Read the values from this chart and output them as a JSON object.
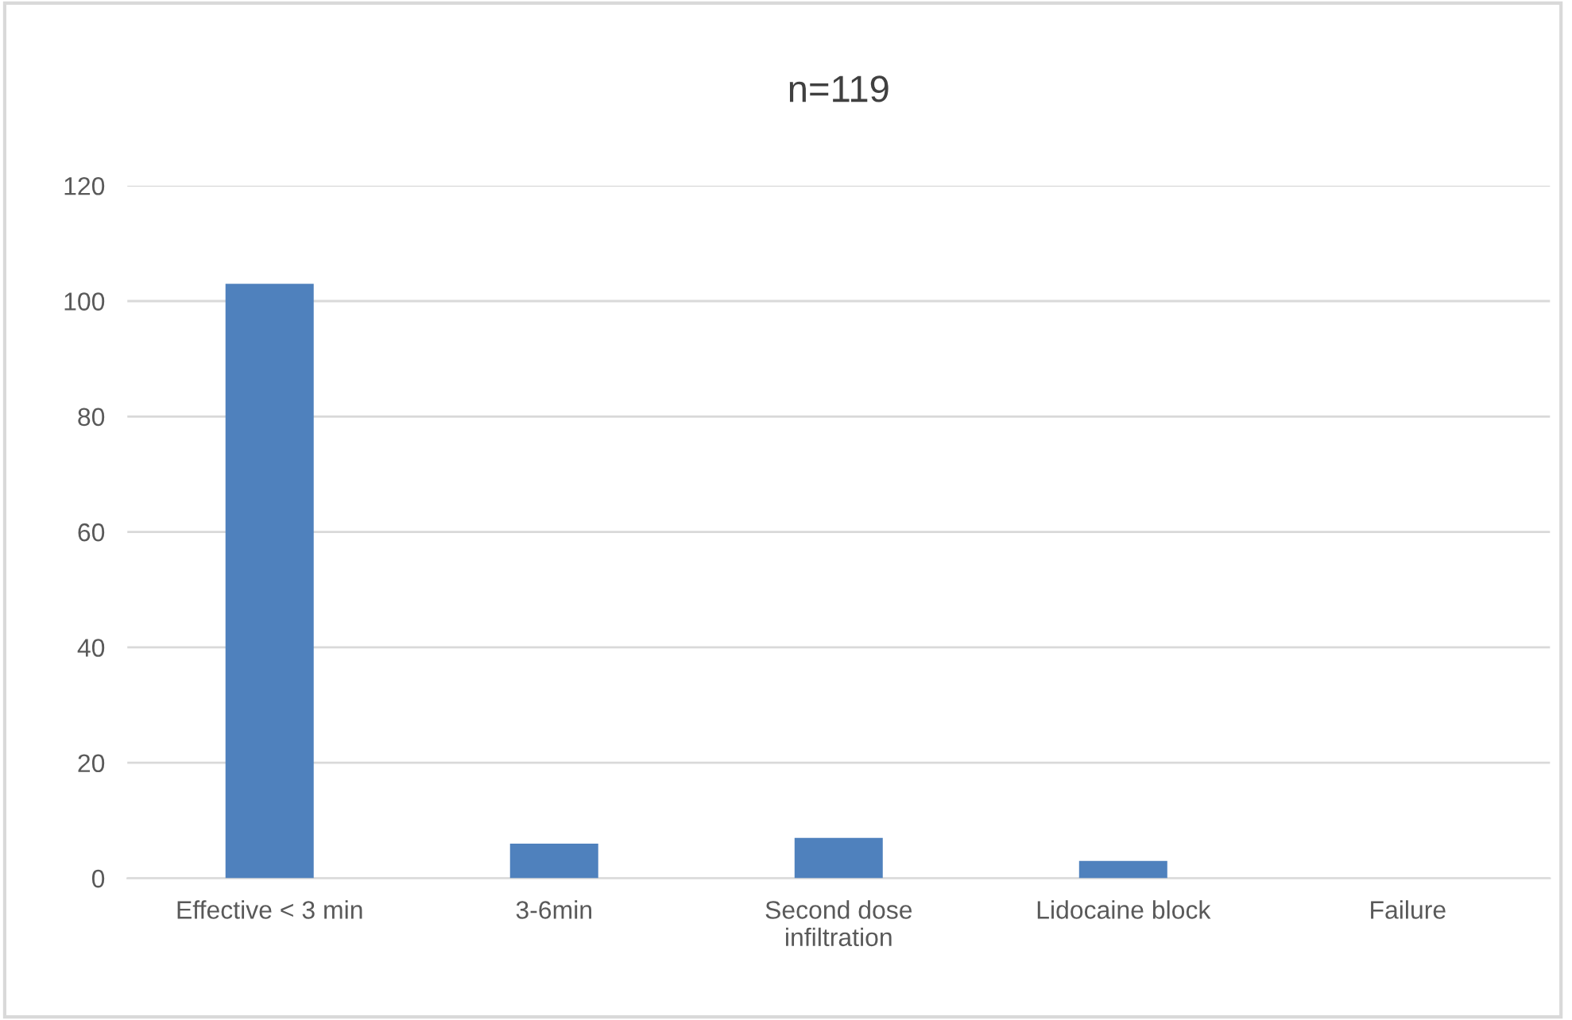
{
  "chart_data": {
    "type": "bar",
    "title": "n=119",
    "categories": [
      "Effective < 3 min",
      "3-6min",
      "Second dose\ninfiltration",
      "Lidocaine block",
      "Failure"
    ],
    "values": [
      103,
      6,
      7,
      3,
      0
    ],
    "color": "#4f81bd",
    "ylim": [
      0,
      120
    ],
    "yticks": [
      0,
      20,
      40,
      60,
      80,
      100,
      120
    ],
    "grid": "y",
    "legend": false
  }
}
